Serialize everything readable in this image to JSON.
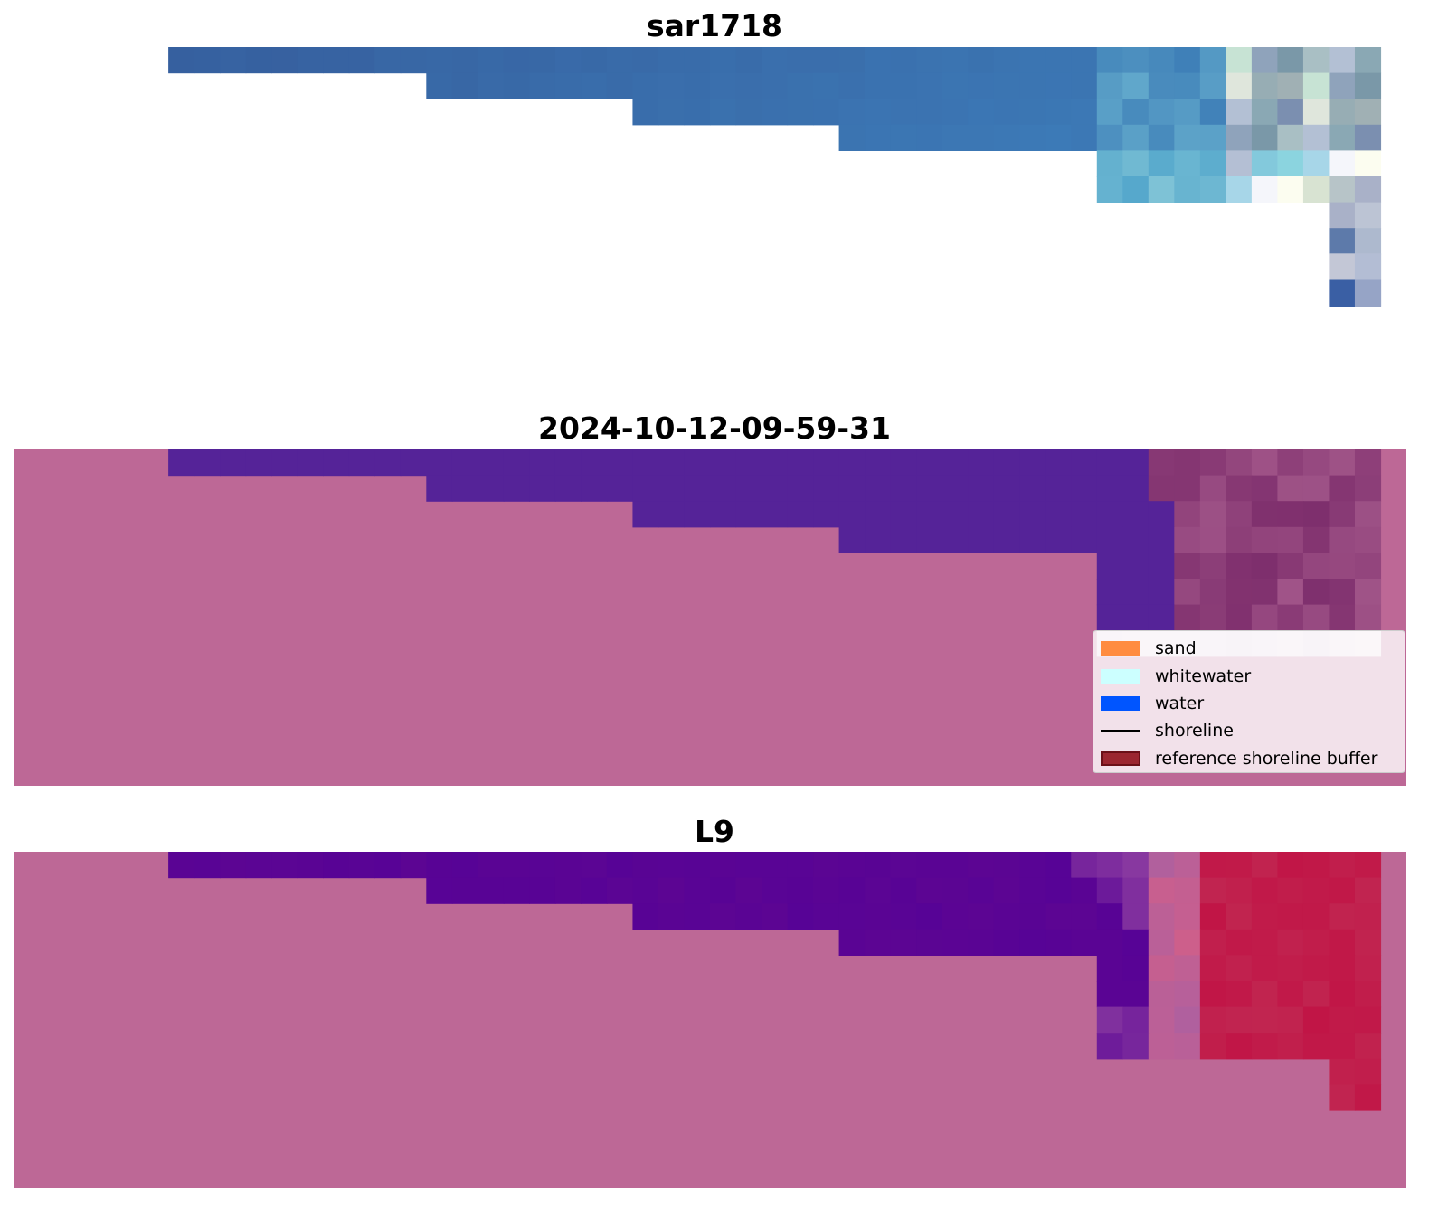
{
  "panels": [
    {
      "title": "sar1718"
    },
    {
      "title": "2024-10-12-09-59-31"
    },
    {
      "title": "L9"
    }
  ],
  "legend": {
    "items": [
      {
        "label": "sand",
        "color": "#ff8c40",
        "kind": "patch"
      },
      {
        "label": "whitewater",
        "color": "#ccffff",
        "kind": "patch"
      },
      {
        "label": "water",
        "color": "#0055ff",
        "kind": "patch"
      },
      {
        "label": "shoreline",
        "color": "#000000",
        "kind": "line"
      },
      {
        "label": "reference shoreline buffer",
        "color": "#9b2630",
        "kind": "patch-outlined"
      }
    ]
  },
  "colors": {
    "background_mask": "#bd6896",
    "sar_blue": "#365f9e",
    "classified_water": "#552398",
    "l9_water": "#5c0593",
    "l9_red": "#c12550"
  }
}
